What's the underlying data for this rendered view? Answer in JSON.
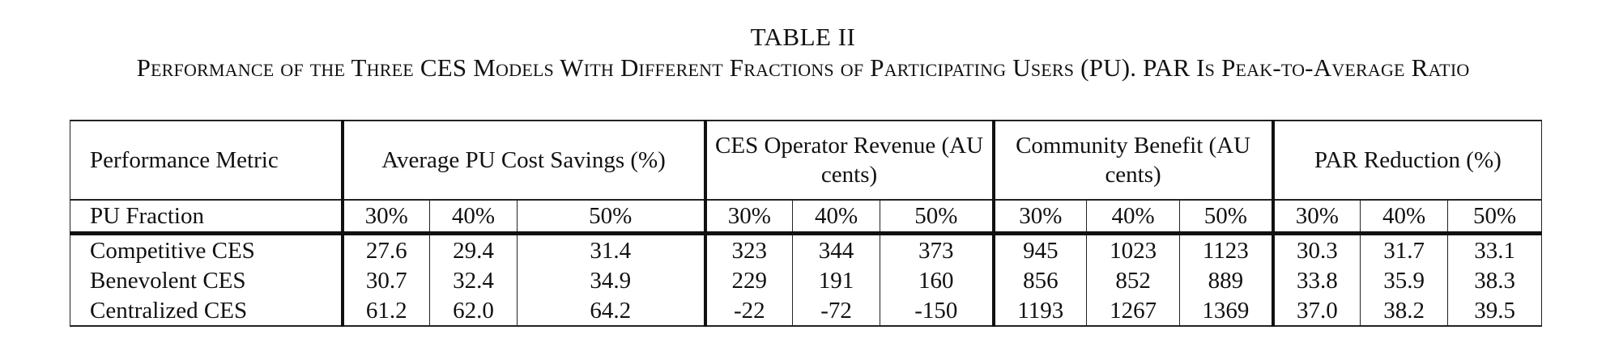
{
  "caption": {
    "label": "TABLE II",
    "text": "Performance of the Three CES Models With Different Fractions of Participating Users (PU). PAR Is Peak-to-Average Ratio"
  },
  "table": {
    "corner_header": "Performance Metric",
    "groups": [
      {
        "id": "savings",
        "label": "Average PU Cost Savings (%)"
      },
      {
        "id": "revenue",
        "label": "CES Operator Revenue (AU cents)"
      },
      {
        "id": "benefit",
        "label": "Community Benefit (AU cents)"
      },
      {
        "id": "par",
        "label": "PAR Reduction (%)"
      }
    ],
    "fraction_label": "PU Fraction",
    "fractions": [
      "30%",
      "40%",
      "50%"
    ],
    "rows": [
      {
        "model": "Competitive CES",
        "values": [
          "27.6",
          "29.4",
          "31.4",
          "323",
          "344",
          "373",
          "945",
          "1023",
          "1123",
          "30.3",
          "31.7",
          "33.1"
        ]
      },
      {
        "model": "Benevolent CES",
        "values": [
          "30.7",
          "32.4",
          "34.9",
          "229",
          "191",
          "160",
          "856",
          "852",
          "889",
          "33.8",
          "35.9",
          "38.3"
        ]
      },
      {
        "model": "Centralized CES",
        "values": [
          "61.2",
          "62.0",
          "64.2",
          "-22",
          "-72",
          "-150",
          "1193",
          "1267",
          "1369",
          "37.0",
          "38.2",
          "39.5"
        ]
      }
    ]
  }
}
